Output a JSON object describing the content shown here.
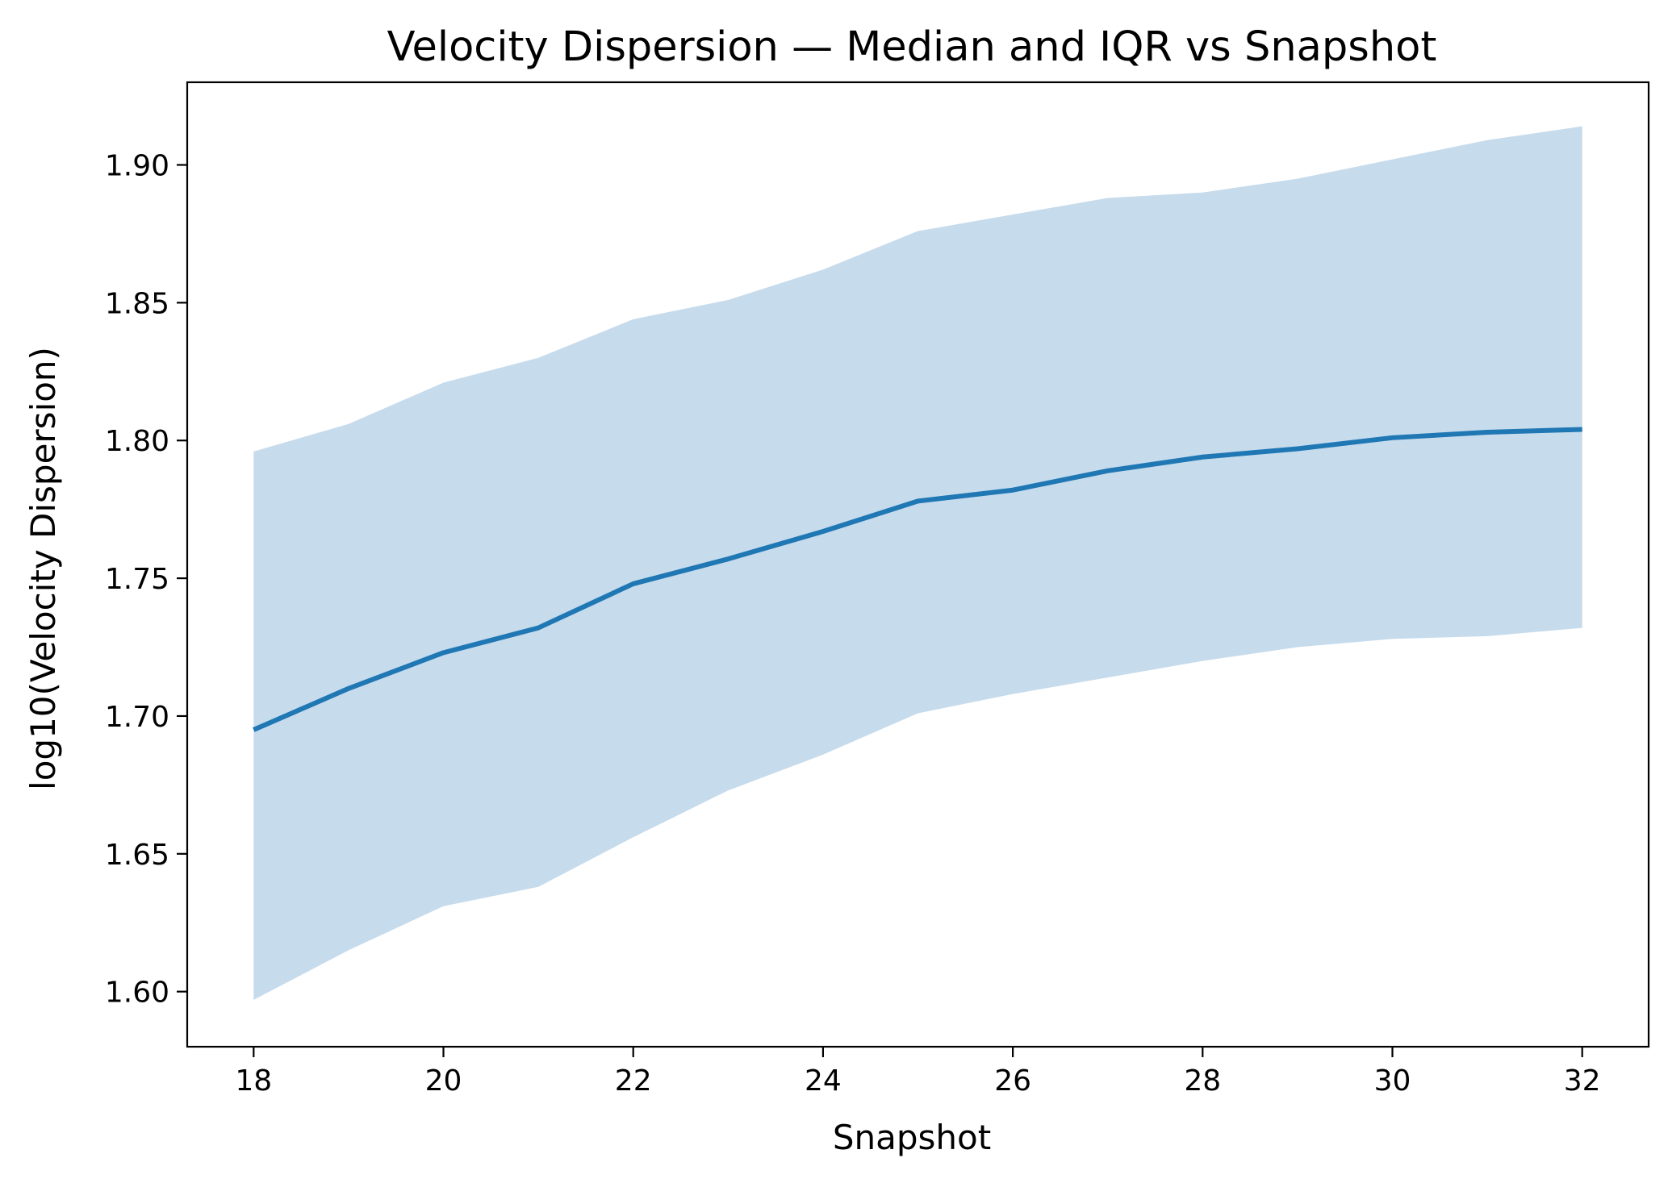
{
  "chart_data": {
    "type": "line",
    "title": "Velocity Dispersion — Median and IQR vs Snapshot",
    "xlabel": "Snapshot",
    "ylabel": "log10(Velocity Dispersion)",
    "xlim": [
      17.3,
      32.7
    ],
    "ylim": [
      1.58,
      1.93
    ],
    "xticks": [
      18,
      20,
      22,
      24,
      26,
      28,
      30,
      32
    ],
    "yticks": [
      1.6,
      1.65,
      1.7,
      1.75,
      1.8,
      1.85,
      1.9
    ],
    "grid": false,
    "x": [
      18,
      19,
      20,
      21,
      22,
      23,
      24,
      25,
      26,
      27,
      28,
      29,
      30,
      31,
      32
    ],
    "median": [
      1.695,
      1.71,
      1.723,
      1.732,
      1.748,
      1.757,
      1.767,
      1.778,
      1.782,
      1.789,
      1.794,
      1.797,
      1.801,
      1.803,
      1.804
    ],
    "q25": [
      1.597,
      1.615,
      1.631,
      1.638,
      1.656,
      1.673,
      1.686,
      1.701,
      1.708,
      1.714,
      1.72,
      1.725,
      1.728,
      1.729,
      1.732
    ],
    "q75": [
      1.796,
      1.806,
      1.821,
      1.83,
      1.844,
      1.851,
      1.862,
      1.876,
      1.882,
      1.888,
      1.89,
      1.895,
      1.902,
      1.909,
      1.914
    ],
    "colors": {
      "line": "#1f77b4",
      "band": "#c6dbec",
      "axis": "#000000"
    }
  }
}
